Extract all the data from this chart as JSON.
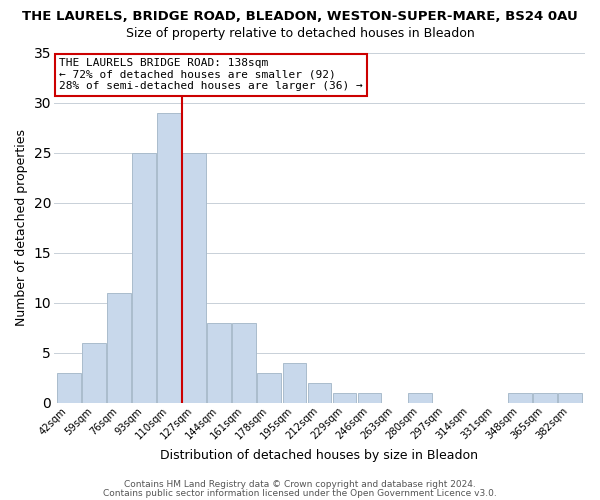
{
  "title": "THE LAURELS, BRIDGE ROAD, BLEADON, WESTON-SUPER-MARE, BS24 0AU",
  "subtitle": "Size of property relative to detached houses in Bleadon",
  "xlabel": "Distribution of detached houses by size in Bleadon",
  "ylabel": "Number of detached properties",
  "bar_color": "#c8d8eb",
  "bar_edge_color": "#aabccc",
  "highlight_color": "#cc0000",
  "bins": [
    "42sqm",
    "59sqm",
    "76sqm",
    "93sqm",
    "110sqm",
    "127sqm",
    "144sqm",
    "161sqm",
    "178sqm",
    "195sqm",
    "212sqm",
    "229sqm",
    "246sqm",
    "263sqm",
    "280sqm",
    "297sqm",
    "314sqm",
    "331sqm",
    "348sqm",
    "365sqm",
    "382sqm"
  ],
  "values": [
    3,
    6,
    11,
    25,
    29,
    25,
    8,
    8,
    3,
    4,
    2,
    1,
    1,
    0,
    1,
    0,
    0,
    0,
    1,
    1,
    1
  ],
  "ylim": [
    0,
    35
  ],
  "yticks": [
    0,
    5,
    10,
    15,
    20,
    25,
    30,
    35
  ],
  "red_line_x": 4.5,
  "annotation_title": "THE LAURELS BRIDGE ROAD: 138sqm",
  "annotation_line1": "← 72% of detached houses are smaller (92)",
  "annotation_line2": "28% of semi-detached houses are larger (36) →",
  "footnote1": "Contains HM Land Registry data © Crown copyright and database right 2024.",
  "footnote2": "Contains public sector information licensed under the Open Government Licence v3.0.",
  "background_color": "#ffffff",
  "grid_color": "#c8d0d8"
}
